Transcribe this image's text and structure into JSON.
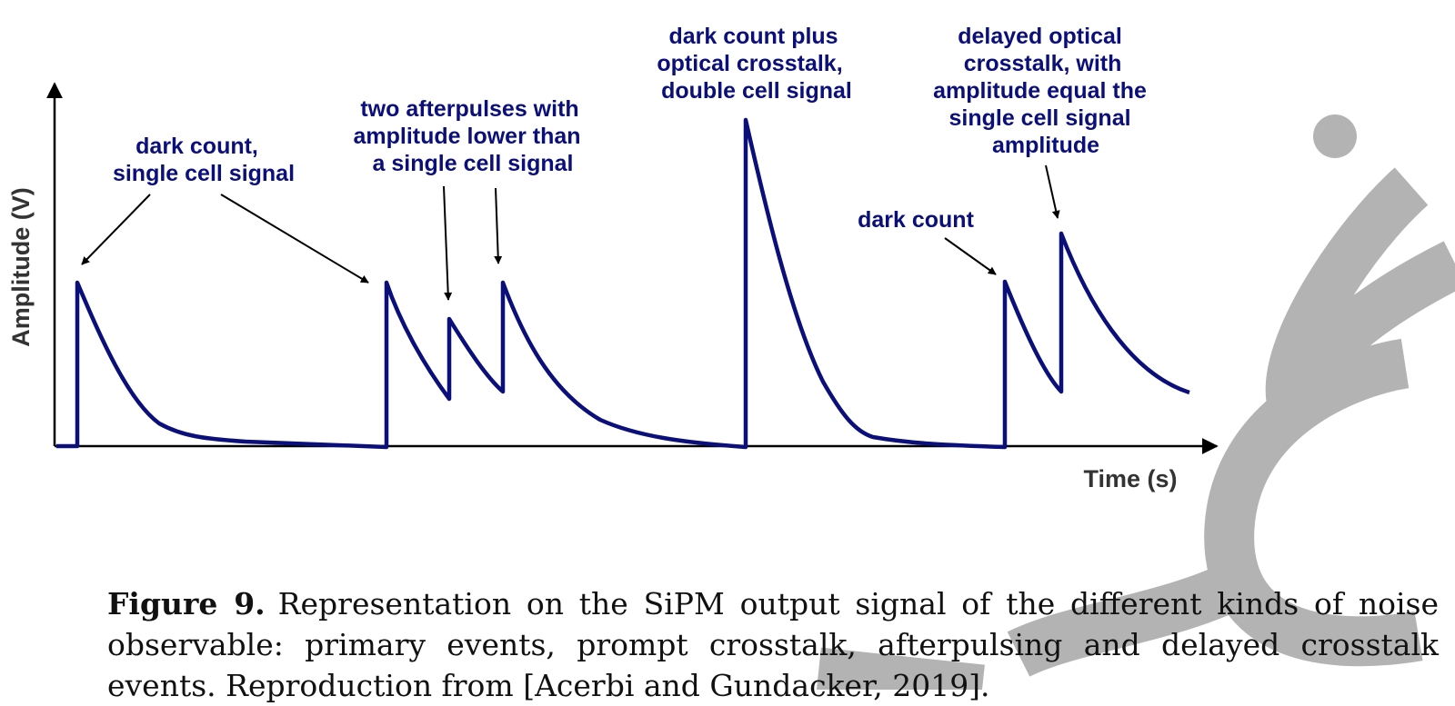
{
  "diagram": {
    "y_axis_label": "Amplitude (V)",
    "x_axis_label": "Time (s)",
    "annotations": {
      "single": [
        "dark count,",
        "single cell signal"
      ],
      "afterpulses": [
        "two afterpulses with",
        "amplitude lower than",
        "a single cell signal"
      ],
      "crosstalk": [
        "dark count plus",
        "optical crosstalk,",
        "double cell signal"
      ],
      "dark": [
        "dark count"
      ],
      "delayed": [
        "delayed optical",
        "crosstalk,  with",
        "amplitude equal the",
        "single cell signal",
        "amplitude"
      ]
    }
  },
  "caption": {
    "label": "Figure 9.",
    "text": "Representation on the SiPM output signal of the different kinds of noise observable: primary events, prompt crosstalk, afterpulsing and delayed crosstalk events. Reproduction from [Acerbi and Gundacker, 2019]."
  },
  "colors": {
    "signal": "#0b0f7a",
    "axis": "#000000",
    "watermark": "#b3b3b3"
  }
}
